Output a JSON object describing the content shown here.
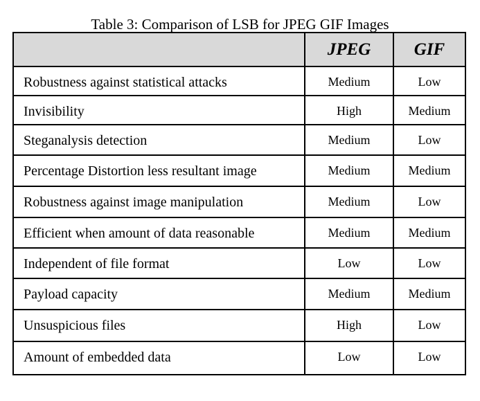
{
  "table": {
    "caption": "Table 3: Comparison of LSB for JPEG GIF Images",
    "headers": [
      "",
      "JPEG",
      "GIF"
    ],
    "rows": [
      {
        "feature": "Robustness against statistical attacks",
        "jpeg": "Medium",
        "gif": "Low"
      },
      {
        "feature": "Invisibility",
        "jpeg": "High",
        "gif": "Medium"
      },
      {
        "feature": "Steganalysis detection",
        "jpeg": "Medium",
        "gif": "Low"
      },
      {
        "feature": "Percentage Distortion less resultant image",
        "jpeg": "Medium",
        "gif": "Medium"
      },
      {
        "feature": "Robustness against image manipulation",
        "jpeg": "Medium",
        "gif": "Low"
      },
      {
        "feature": "Efficient when amount of data reasonable",
        "jpeg": "Medium",
        "gif": "Medium"
      },
      {
        "feature": "Independent of file format",
        "jpeg": "Low",
        "gif": "Low"
      },
      {
        "feature": "Payload capacity",
        "jpeg": "Medium",
        "gif": "Medium"
      },
      {
        "feature": "Unsuspicious files",
        "jpeg": "High",
        "gif": "Low"
      },
      {
        "feature": "Amount of embedded data",
        "jpeg": "Low",
        "gif": "Low"
      }
    ]
  }
}
